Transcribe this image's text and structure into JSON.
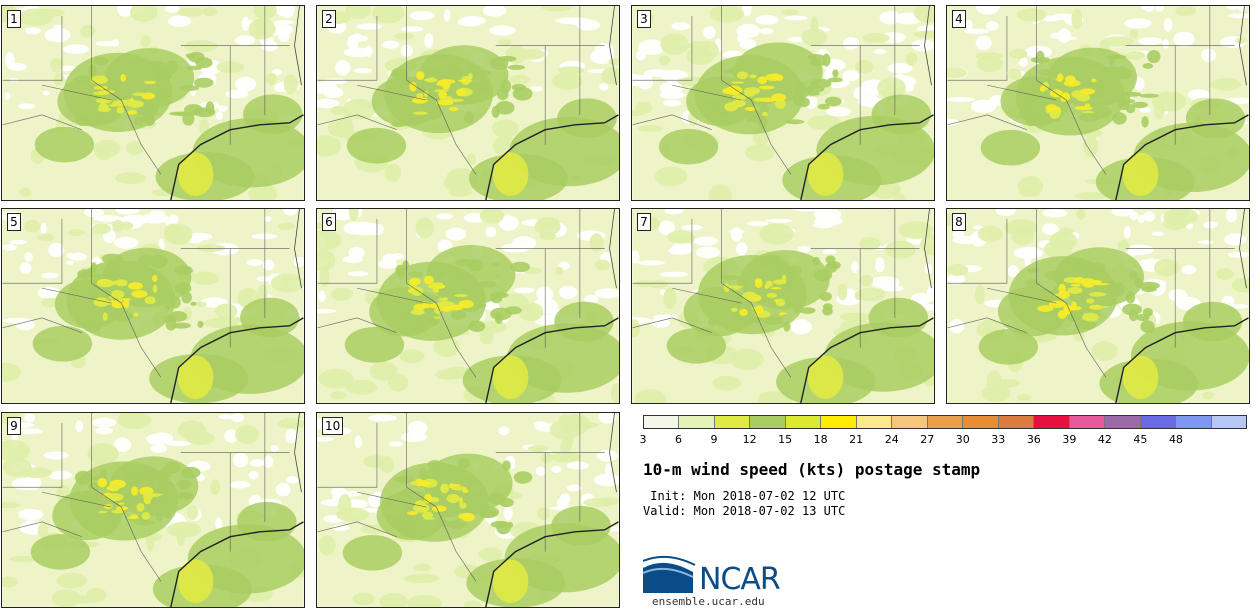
{
  "panels": [
    {
      "label": "1"
    },
    {
      "label": "2"
    },
    {
      "label": "3"
    },
    {
      "label": "4"
    },
    {
      "label": "5"
    },
    {
      "label": "6"
    },
    {
      "label": "7"
    },
    {
      "label": "8"
    },
    {
      "label": "9"
    },
    {
      "label": "10"
    }
  ],
  "colorbar": {
    "colors": [
      "#f3f7e8",
      "#e5f2b8",
      "#dfea44",
      "#a9cd62",
      "#dde833",
      "#ffec00",
      "#fde88c",
      "#f6c67d",
      "#eb9e4a",
      "#e88d34",
      "#dc7b3f",
      "#e8103c",
      "#e75a9c",
      "#9c6aa8",
      "#6a6ae6",
      "#7d96f0",
      "#b7c8f6"
    ],
    "ticks": [
      "3",
      "6",
      "9",
      "12",
      "15",
      "18",
      "21",
      "24",
      "27",
      "30",
      "33",
      "36",
      "39",
      "42",
      "45",
      "48"
    ]
  },
  "title": "10-m wind speed (kts) postage stamp",
  "init_label": " Init:",
  "init_value": "Mon 2018-07-02 12 UTC",
  "valid_label": "Valid:",
  "valid_value": "Mon 2018-07-02 13 UTC",
  "logo": {
    "text": "NCAR",
    "url": "ensemble.ucar.edu"
  }
}
